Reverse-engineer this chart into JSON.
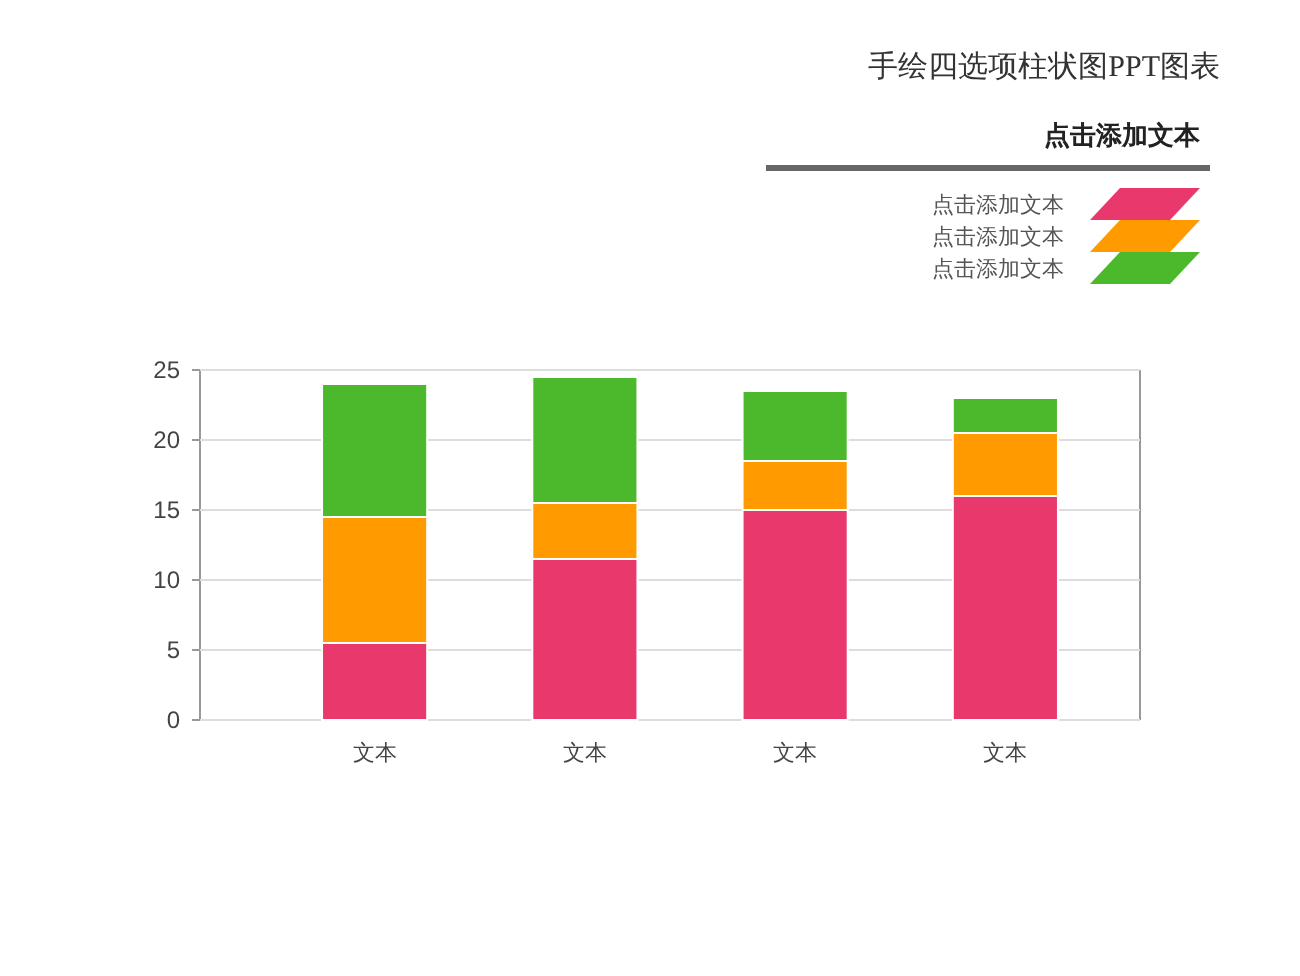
{
  "chart_data": {
    "type": "bar",
    "title": "手绘四选项柱状图PPT图表",
    "legend_title": "点击添加文本",
    "categories": [
      "文本",
      "文本",
      "文本",
      "文本"
    ],
    "series": [
      {
        "name": "点击添加文本",
        "color": "#e8386c",
        "values": [
          5.5,
          11.5,
          15,
          16
        ]
      },
      {
        "name": "点击添加文本",
        "color": "#ff9a00",
        "values": [
          9,
          4,
          3.5,
          4.5
        ]
      },
      {
        "name": "点击添加文本",
        "color": "#4cb82c",
        "values": [
          9.5,
          9,
          5,
          2.5
        ]
      }
    ],
    "stacked": true,
    "ylim": [
      0,
      25
    ],
    "yticks": [
      0,
      5,
      10,
      15,
      20,
      25
    ],
    "grid": "y",
    "legend": "top right"
  }
}
